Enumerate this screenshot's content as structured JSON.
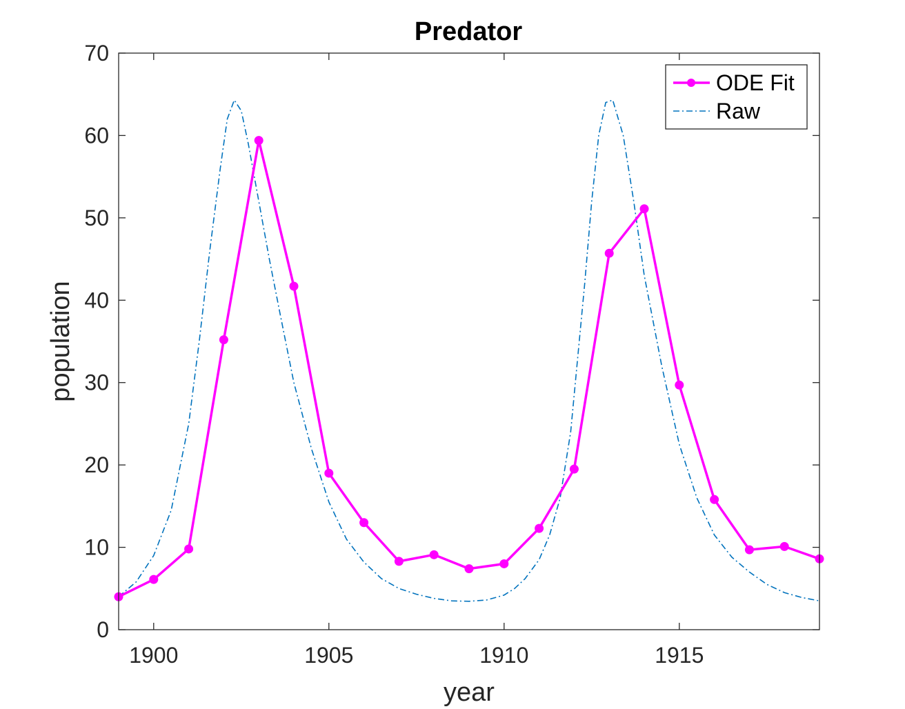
{
  "chart_data": {
    "type": "line",
    "title": "Predator",
    "xlabel": "year",
    "ylabel": "population",
    "xlim": [
      1899,
      1919
    ],
    "ylim": [
      0,
      70
    ],
    "xticks": [
      1900,
      1905,
      1910,
      1915
    ],
    "yticks": [
      0,
      10,
      20,
      30,
      40,
      50,
      60,
      70
    ],
    "grid": false,
    "legend_position": "top-right",
    "series": [
      {
        "name": "ODE Fit",
        "color": "#ff00ff",
        "style": "solid-with-markers",
        "x": [
          1899,
          1900,
          1901,
          1902,
          1903,
          1904,
          1905,
          1906,
          1907,
          1908,
          1909,
          1910,
          1911,
          1912,
          1913,
          1914,
          1915,
          1916,
          1917,
          1918,
          1919
        ],
        "y": [
          4.0,
          6.1,
          9.8,
          35.2,
          59.4,
          41.7,
          19.0,
          13.0,
          8.3,
          9.1,
          7.4,
          8.0,
          12.3,
          19.5,
          45.7,
          51.1,
          29.7,
          15.8,
          9.7,
          10.1,
          8.6
        ]
      },
      {
        "name": "Raw",
        "color": "#0072bd",
        "style": "dash-dot",
        "x": [
          1899,
          1899.5,
          1900,
          1900.5,
          1901,
          1901.3,
          1901.6,
          1901.9,
          1902.1,
          1902.3,
          1902.5,
          1902.7,
          1903,
          1903.3,
          1903.6,
          1904,
          1904.5,
          1905,
          1905.5,
          1906,
          1906.5,
          1907,
          1907.5,
          1908,
          1908.5,
          1909,
          1909.5,
          1910,
          1910.3,
          1910.6,
          1911,
          1911.3,
          1911.6,
          1911.9,
          1912.1,
          1912.3,
          1912.5,
          1912.7,
          1912.9,
          1913.1,
          1913.4,
          1913.7,
          1914,
          1914.5,
          1915,
          1915.5,
          1916,
          1916.5,
          1917,
          1917.5,
          1918,
          1918.5,
          1919
        ],
        "y": [
          4.0,
          5.8,
          9.0,
          14.5,
          25.0,
          35.0,
          46.0,
          56.0,
          62.0,
          64.3,
          63.0,
          59.0,
          52.0,
          45.0,
          38.5,
          30.0,
          22.0,
          15.5,
          11.0,
          8.2,
          6.2,
          5.0,
          4.3,
          3.8,
          3.5,
          3.45,
          3.6,
          4.2,
          5.0,
          6.2,
          8.5,
          11.5,
          16.0,
          24.0,
          33.0,
          42.0,
          52.0,
          60.0,
          64.0,
          64.3,
          60.0,
          52.0,
          43.0,
          32.0,
          22.5,
          16.0,
          11.5,
          8.8,
          7.0,
          5.5,
          4.5,
          3.9,
          3.5
        ]
      }
    ]
  }
}
